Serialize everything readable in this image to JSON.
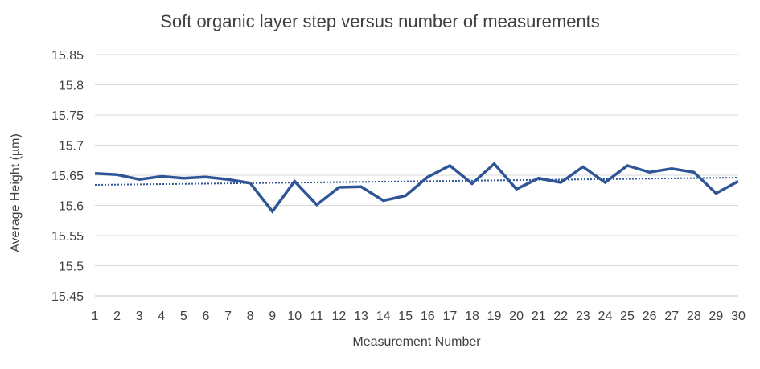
{
  "chart_data": {
    "type": "line",
    "title": "Soft organic layer step versus number of measurements",
    "xlabel": "Measurement Number",
    "ylabel": "Average Height (µm)",
    "x": [
      1,
      2,
      3,
      4,
      5,
      6,
      7,
      8,
      9,
      10,
      11,
      12,
      13,
      14,
      15,
      16,
      17,
      18,
      19,
      20,
      21,
      22,
      23,
      24,
      25,
      26,
      27,
      28,
      29,
      30
    ],
    "series": [
      {
        "values": [
          15.653,
          15.651,
          15.643,
          15.648,
          15.645,
          15.647,
          15.643,
          15.637,
          15.59,
          15.64,
          15.601,
          15.63,
          15.631,
          15.608,
          15.616,
          15.647,
          15.666,
          15.636,
          15.669,
          15.627,
          15.645,
          15.638,
          15.664,
          15.638,
          15.666,
          15.655,
          15.661,
          15.655,
          15.62,
          15.64
        ],
        "color": "#2f5597"
      }
    ],
    "trendline": {
      "type": "linear",
      "start": 15.634,
      "end": 15.646,
      "style": "dotted",
      "color": "#2f5597"
    },
    "ylim": [
      15.45,
      15.85
    ],
    "yticks": [
      "15.45",
      "15.5",
      "15.55",
      "15.6",
      "15.65",
      "15.7",
      "15.75",
      "15.8",
      "15.85"
    ],
    "xticks": [
      "1",
      "2",
      "3",
      "4",
      "5",
      "6",
      "7",
      "8",
      "9",
      "10",
      "11",
      "12",
      "13",
      "14",
      "15",
      "16",
      "17",
      "18",
      "19",
      "20",
      "21",
      "22",
      "23",
      "24",
      "25",
      "26",
      "27",
      "28",
      "29",
      "30"
    ],
    "grid": true,
    "legend": "none"
  }
}
